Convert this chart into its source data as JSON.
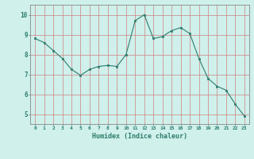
{
  "x": [
    0,
    1,
    2,
    3,
    4,
    5,
    6,
    7,
    8,
    9,
    10,
    11,
    12,
    13,
    14,
    15,
    16,
    17,
    18,
    19,
    20,
    21,
    22,
    23
  ],
  "y": [
    8.8,
    8.6,
    8.2,
    7.8,
    7.25,
    6.95,
    7.25,
    7.4,
    7.45,
    7.4,
    8.0,
    9.7,
    10.0,
    8.8,
    8.9,
    9.2,
    9.35,
    9.05,
    7.8,
    6.8,
    6.4,
    6.2,
    5.5,
    4.9
  ],
  "line_color": "#2d7d6e",
  "marker": "s",
  "marker_size": 2.0,
  "bg_color": "#cff0eb",
  "grid_color": "#d08080",
  "xlabel": "Humidex (Indice chaleur)",
  "xlabel_color": "#2d7d6e",
  "tick_color": "#2d7d6e",
  "ylim": [
    4.5,
    10.5
  ],
  "xlim": [
    -0.5,
    23.5
  ],
  "yticks": [
    5,
    6,
    7,
    8,
    9,
    10
  ],
  "xticks": [
    0,
    1,
    2,
    3,
    4,
    5,
    6,
    7,
    8,
    9,
    10,
    11,
    12,
    13,
    14,
    15,
    16,
    17,
    18,
    19,
    20,
    21,
    22,
    23
  ],
  "xtick_labels": [
    "0",
    "1",
    "2",
    "3",
    "4",
    "5",
    "6",
    "7",
    "8",
    "9",
    "10",
    "11",
    "12",
    "13",
    "14",
    "15",
    "16",
    "17",
    "18",
    "19",
    "20",
    "21",
    "22",
    "23"
  ]
}
